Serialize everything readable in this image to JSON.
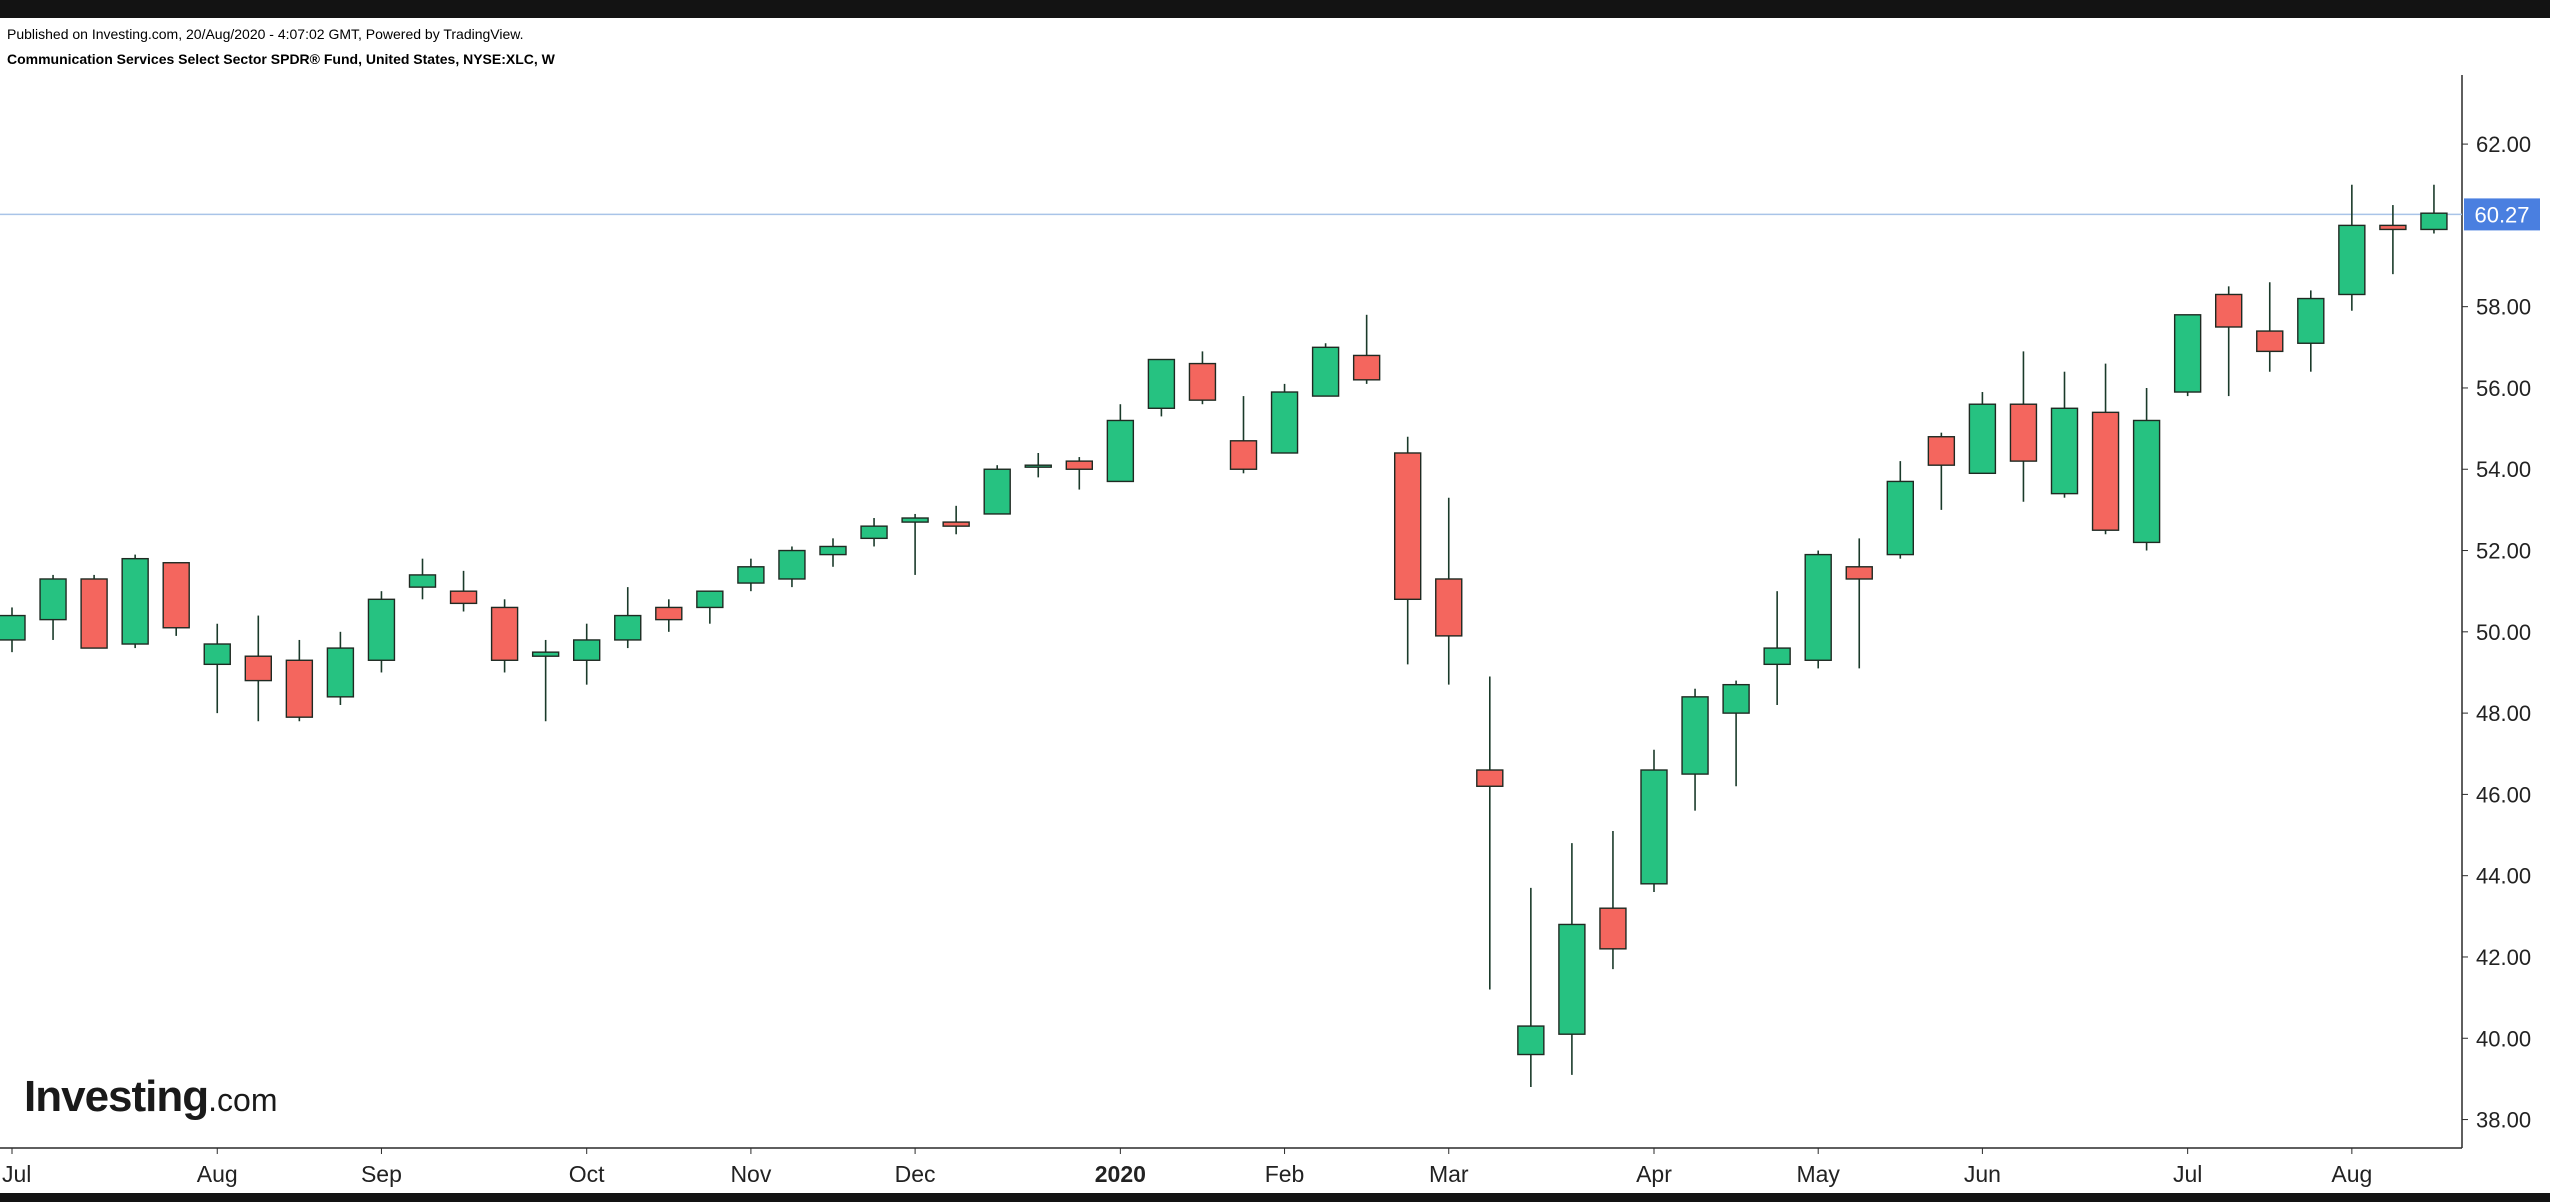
{
  "header": {
    "published": "Published on Investing.com, 20/Aug/2020 - 4:07:02 GMT, Powered by TradingView.",
    "instrument": "Communication Services Select Sector SPDR® Fund, United States, NYSE:XLC, W"
  },
  "logo": {
    "brand": "Investing",
    "tld": ".com"
  },
  "chart_data": {
    "type": "candlestick",
    "title": "Communication Services Select Sector SPDR® Fund, United States, NYSE:XLC, W",
    "interval": "weekly",
    "ylim": [
      37.3,
      63.7
    ],
    "yticks": [
      "38.00",
      "40.00",
      "42.00",
      "44.00",
      "46.00",
      "48.00",
      "50.00",
      "52.00",
      "54.00",
      "56.00",
      "58.00",
      "62.00"
    ],
    "xticks": [
      {
        "label": "Jul",
        "week": 0,
        "bold": false
      },
      {
        "label": "Aug",
        "week": 5,
        "bold": false
      },
      {
        "label": "Sep",
        "week": 9,
        "bold": false
      },
      {
        "label": "Oct",
        "week": 14,
        "bold": false
      },
      {
        "label": "Nov",
        "week": 18,
        "bold": false
      },
      {
        "label": "Dec",
        "week": 22,
        "bold": false
      },
      {
        "label": "2020",
        "week": 27,
        "bold": true
      },
      {
        "label": "Feb",
        "week": 31,
        "bold": false
      },
      {
        "label": "Mar",
        "week": 35,
        "bold": false
      },
      {
        "label": "Apr",
        "week": 40,
        "bold": false
      },
      {
        "label": "May",
        "week": 44,
        "bold": false
      },
      {
        "label": "Jun",
        "week": 48,
        "bold": false
      },
      {
        "label": "Jul",
        "week": 53,
        "bold": false
      },
      {
        "label": "Aug",
        "week": 57,
        "bold": false
      }
    ],
    "last_price": 60.27,
    "last_price_label": "60.27",
    "colors": {
      "up": "#26c281",
      "down": "#f4665e",
      "wick": "#1a3a2a",
      "price_line": "#a9c4e8",
      "price_badge": "#4a7fe0"
    },
    "candles": [
      {
        "o": 49.8,
        "h": 50.6,
        "l": 49.5,
        "c": 50.4
      },
      {
        "o": 50.3,
        "h": 51.4,
        "l": 49.8,
        "c": 51.3
      },
      {
        "o": 51.3,
        "h": 51.4,
        "l": 49.6,
        "c": 49.6
      },
      {
        "o": 49.7,
        "h": 51.9,
        "l": 49.6,
        "c": 51.8
      },
      {
        "o": 51.7,
        "h": 51.7,
        "l": 49.9,
        "c": 50.1
      },
      {
        "o": 49.2,
        "h": 50.2,
        "l": 48.0,
        "c": 49.7
      },
      {
        "o": 49.4,
        "h": 50.4,
        "l": 47.8,
        "c": 48.8
      },
      {
        "o": 49.3,
        "h": 49.8,
        "l": 47.8,
        "c": 47.9
      },
      {
        "o": 48.4,
        "h": 50.0,
        "l": 48.2,
        "c": 49.6
      },
      {
        "o": 49.3,
        "h": 51.0,
        "l": 49.0,
        "c": 50.8
      },
      {
        "o": 51.1,
        "h": 51.8,
        "l": 50.8,
        "c": 51.4
      },
      {
        "o": 51.0,
        "h": 51.5,
        "l": 50.5,
        "c": 50.7
      },
      {
        "o": 50.6,
        "h": 50.8,
        "l": 49.0,
        "c": 49.3
      },
      {
        "o": 49.4,
        "h": 49.8,
        "l": 47.8,
        "c": 49.5
      },
      {
        "o": 49.3,
        "h": 50.2,
        "l": 48.7,
        "c": 49.8
      },
      {
        "o": 49.8,
        "h": 51.1,
        "l": 49.6,
        "c": 50.4
      },
      {
        "o": 50.6,
        "h": 50.8,
        "l": 50.0,
        "c": 50.3
      },
      {
        "o": 50.6,
        "h": 51.0,
        "l": 50.2,
        "c": 51.0
      },
      {
        "o": 51.2,
        "h": 51.8,
        "l": 51.0,
        "c": 51.6
      },
      {
        "o": 51.3,
        "h": 52.1,
        "l": 51.1,
        "c": 52.0
      },
      {
        "o": 51.9,
        "h": 52.3,
        "l": 51.6,
        "c": 52.1
      },
      {
        "o": 52.3,
        "h": 52.8,
        "l": 52.1,
        "c": 52.6
      },
      {
        "o": 52.7,
        "h": 52.9,
        "l": 51.4,
        "c": 52.8
      },
      {
        "o": 52.7,
        "h": 53.1,
        "l": 52.4,
        "c": 52.6
      },
      {
        "o": 52.9,
        "h": 54.1,
        "l": 52.9,
        "c": 54.0
      },
      {
        "o": 54.1,
        "h": 54.4,
        "l": 53.8,
        "c": 54.1
      },
      {
        "o": 54.2,
        "h": 54.3,
        "l": 53.5,
        "c": 54.0
      },
      {
        "o": 53.7,
        "h": 55.6,
        "l": 53.7,
        "c": 55.2
      },
      {
        "o": 55.5,
        "h": 56.7,
        "l": 55.3,
        "c": 56.7
      },
      {
        "o": 56.6,
        "h": 56.9,
        "l": 55.6,
        "c": 55.7
      },
      {
        "o": 54.7,
        "h": 55.8,
        "l": 53.9,
        "c": 54.0
      },
      {
        "o": 54.4,
        "h": 56.1,
        "l": 54.4,
        "c": 55.9
      },
      {
        "o": 55.8,
        "h": 57.1,
        "l": 55.8,
        "c": 57.0
      },
      {
        "o": 56.8,
        "h": 57.8,
        "l": 56.1,
        "c": 56.2
      },
      {
        "o": 54.4,
        "h": 54.8,
        "l": 49.2,
        "c": 50.8
      },
      {
        "o": 51.3,
        "h": 53.3,
        "l": 48.7,
        "c": 49.9
      },
      {
        "o": 46.6,
        "h": 48.9,
        "l": 41.2,
        "c": 46.2
      },
      {
        "o": 39.6,
        "h": 43.7,
        "l": 38.8,
        "c": 40.3
      },
      {
        "o": 40.1,
        "h": 44.8,
        "l": 39.1,
        "c": 42.8
      },
      {
        "o": 43.2,
        "h": 45.1,
        "l": 41.7,
        "c": 42.2
      },
      {
        "o": 43.8,
        "h": 47.1,
        "l": 43.6,
        "c": 46.6
      },
      {
        "o": 46.5,
        "h": 48.6,
        "l": 45.6,
        "c": 48.4
      },
      {
        "o": 48.0,
        "h": 48.8,
        "l": 46.2,
        "c": 48.7
      },
      {
        "o": 49.2,
        "h": 51.0,
        "l": 48.2,
        "c": 49.6
      },
      {
        "o": 49.3,
        "h": 52.0,
        "l": 49.1,
        "c": 51.9
      },
      {
        "o": 51.6,
        "h": 52.3,
        "l": 49.1,
        "c": 51.3
      },
      {
        "o": 51.9,
        "h": 54.2,
        "l": 51.8,
        "c": 53.7
      },
      {
        "o": 54.8,
        "h": 54.9,
        "l": 53.0,
        "c": 54.1
      },
      {
        "o": 53.9,
        "h": 55.9,
        "l": 53.9,
        "c": 55.6
      },
      {
        "o": 55.6,
        "h": 56.9,
        "l": 53.2,
        "c": 54.2
      },
      {
        "o": 53.4,
        "h": 56.4,
        "l": 53.3,
        "c": 55.5
      },
      {
        "o": 55.4,
        "h": 56.6,
        "l": 52.4,
        "c": 52.5
      },
      {
        "o": 52.2,
        "h": 56.0,
        "l": 52.0,
        "c": 55.2
      },
      {
        "o": 55.9,
        "h": 57.8,
        "l": 55.8,
        "c": 57.8
      },
      {
        "o": 58.3,
        "h": 58.5,
        "l": 55.8,
        "c": 57.5
      },
      {
        "o": 57.4,
        "h": 58.6,
        "l": 56.4,
        "c": 56.9
      },
      {
        "o": 57.1,
        "h": 58.4,
        "l": 56.4,
        "c": 58.2
      },
      {
        "o": 58.3,
        "h": 61.0,
        "l": 57.9,
        "c": 60.0
      },
      {
        "o": 60.0,
        "h": 60.5,
        "l": 58.8,
        "c": 59.9
      },
      {
        "o": 59.9,
        "h": 61.0,
        "l": 59.8,
        "c": 60.3
      }
    ]
  }
}
